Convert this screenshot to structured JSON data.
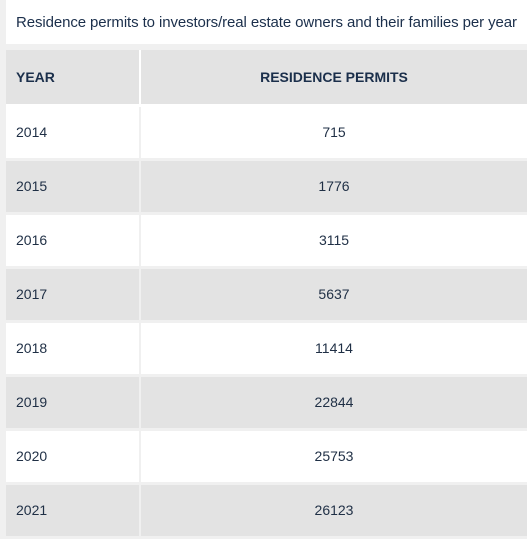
{
  "title": "Residence permits to investors/real estate owners and their families per year",
  "headers": {
    "year": "YEAR",
    "value": "RESIDENCE PERMITS"
  },
  "chart_data": {
    "type": "table",
    "title": "Residence permits to investors/real estate owners and their families per year",
    "columns": [
      "YEAR",
      "RESIDENCE PERMITS"
    ],
    "rows": [
      {
        "year": "2014",
        "value": "715"
      },
      {
        "year": "2015",
        "value": "1776"
      },
      {
        "year": "2016",
        "value": "3115"
      },
      {
        "year": "2017",
        "value": "5637"
      },
      {
        "year": "2018",
        "value": "11414"
      },
      {
        "year": "2019",
        "value": "22844"
      },
      {
        "year": "2020",
        "value": "25753"
      },
      {
        "year": "2021",
        "value": "26123"
      }
    ]
  }
}
